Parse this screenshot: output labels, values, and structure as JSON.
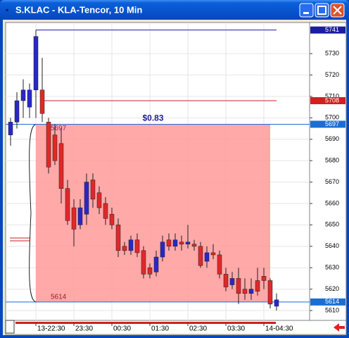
{
  "chart_data": {
    "type": "candlestick",
    "title": "S.KLAC - KLA-Tencor, 10 Min",
    "categories": [
      null,
      null,
      null,
      null,
      "13-22:30",
      null,
      null,
      null,
      null,
      null,
      "23:30",
      null,
      null,
      null,
      null,
      null,
      "00:30",
      null,
      null,
      null,
      null,
      null,
      "01:30",
      null,
      null,
      null,
      null,
      null,
      "02:30",
      null,
      null,
      null,
      null,
      null,
      "03:30",
      null,
      null,
      null,
      null,
      null,
      "14-04:30",
      null,
      null
    ],
    "open": [
      5692,
      5698,
      5708,
      5705,
      5713,
      5713,
      5698,
      5692,
      5688,
      5667,
      5658,
      5650,
      5655,
      5671,
      5665,
      5660,
      5655,
      5650,
      5640,
      5638,
      5643,
      5638,
      5630,
      5628,
      5635,
      5643,
      5640,
      5642,
      5641,
      5641,
      5640,
      5633,
      5637,
      5636,
      5627,
      5622,
      5625,
      5620,
      5618,
      5624,
      5626,
      5624,
      5612
    ],
    "high": [
      5700,
      5712,
      5718,
      5716,
      5741,
      5728,
      5700,
      5697,
      5695,
      5671,
      5662,
      5662,
      5674,
      5674,
      5668,
      5663,
      5658,
      5653,
      5642,
      5645,
      5646,
      5640,
      5632,
      5638,
      5645,
      5646,
      5646,
      5645,
      5650,
      5643,
      5642,
      5640,
      5641,
      5638,
      5630,
      5628,
      5630,
      5625,
      5625,
      5630,
      5630,
      5625,
      5618
    ],
    "low": [
      5687,
      5695,
      5700,
      5700,
      5700,
      5698,
      5674,
      5678,
      5660,
      5650,
      5640,
      5648,
      5650,
      5658,
      5655,
      5650,
      5648,
      5635,
      5636,
      5636,
      5635,
      5625,
      5625,
      5626,
      5633,
      5638,
      5638,
      5638,
      5639,
      5638,
      5630,
      5630,
      5634,
      5625,
      5619,
      5620,
      5613,
      5615,
      5615,
      5617,
      5620,
      5611,
      5610
    ],
    "close": [
      5698,
      5708,
      5713,
      5713,
      5738,
      5702,
      5677,
      5680,
      5667,
      5652,
      5648,
      5658,
      5670,
      5662,
      5658,
      5653,
      5650,
      5638,
      5638,
      5643,
      5637,
      5627,
      5627,
      5635,
      5642,
      5640,
      5643,
      5641,
      5642,
      5640,
      5631,
      5637,
      5636,
      5627,
      5621,
      5625,
      5618,
      5618,
      5620,
      5619,
      5624,
      5613,
      5615
    ],
    "up_color": "#2828c8",
    "down_color": "#e02828",
    "ylim": [
      5605.4,
      5744.5
    ],
    "yticks": [
      5610,
      5620,
      5630,
      5640,
      5650,
      5660,
      5670,
      5680,
      5690,
      5700,
      5710,
      5720,
      5730
    ],
    "levels": [
      {
        "value": 5741,
        "color": "#1c1ca0"
      },
      {
        "value": 5708,
        "color": "#d02020"
      },
      {
        "value": 5697,
        "color": "#1c6ed0"
      },
      {
        "value": 5614,
        "color": "#1c6ed0"
      }
    ],
    "range_label": "$0.83",
    "range_color": "#ff9a9a"
  }
}
